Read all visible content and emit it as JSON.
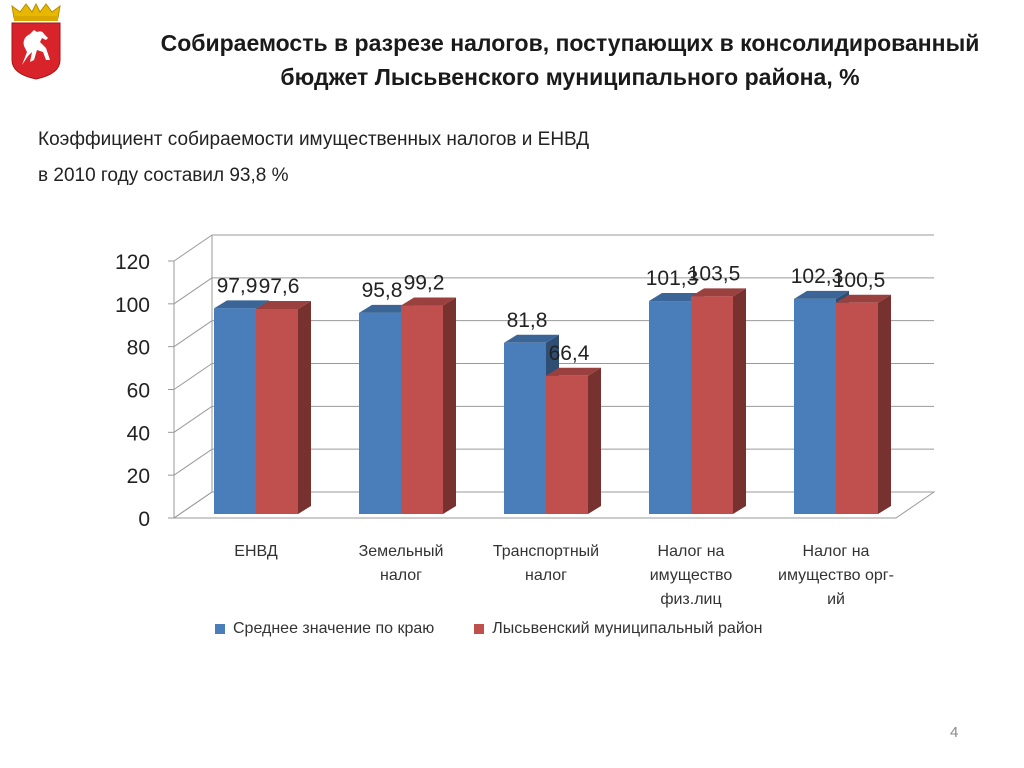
{
  "header": {
    "title_lines": [
      "Собираемость в разрезе налогов, поступающих в консолидированный",
      "бюджет Лысьвенского муниципального района, %"
    ]
  },
  "subtitle_lines": [
    "Коэффициент собираемости имущественных налогов и ЕНВД",
    "в 2010 году составил 93,8 %"
  ],
  "page_number": "4",
  "emblem": {
    "icon": "coat-of-arms-icon",
    "colors": {
      "shield": "#d8232a",
      "crown": "#e8b800",
      "horse": "#ffffff"
    }
  },
  "chart_data": {
    "type": "bar",
    "categories": [
      [
        "ЕНВД"
      ],
      [
        "Земельный",
        "налог"
      ],
      [
        "Транспортный",
        "налог"
      ],
      [
        "Налог на",
        "имущество",
        "физ.лиц"
      ],
      [
        "Налог на",
        "имущество орг-",
        "ий"
      ]
    ],
    "series": [
      {
        "name": "Среднее значение по краю",
        "color": "#4a7ebb",
        "values": [
          97.9,
          95.8,
          81.8,
          101.3,
          102.3
        ],
        "labels": [
          "97,9",
          "95,8",
          "81,8",
          "101,3",
          "102,3"
        ]
      },
      {
        "name": "Лысьвенский муниципальный район",
        "color": "#c0504d",
        "values": [
          97.6,
          99.2,
          66.4,
          103.5,
          100.5
        ],
        "labels": [
          "97,6",
          "99,2",
          "66,4",
          "103,5",
          "100,5"
        ]
      }
    ],
    "ylim": [
      0,
      120
    ],
    "yticks": [
      "0",
      "20",
      "40",
      "60",
      "80",
      "100",
      "120"
    ],
    "grid": true,
    "legend": "bottom"
  }
}
